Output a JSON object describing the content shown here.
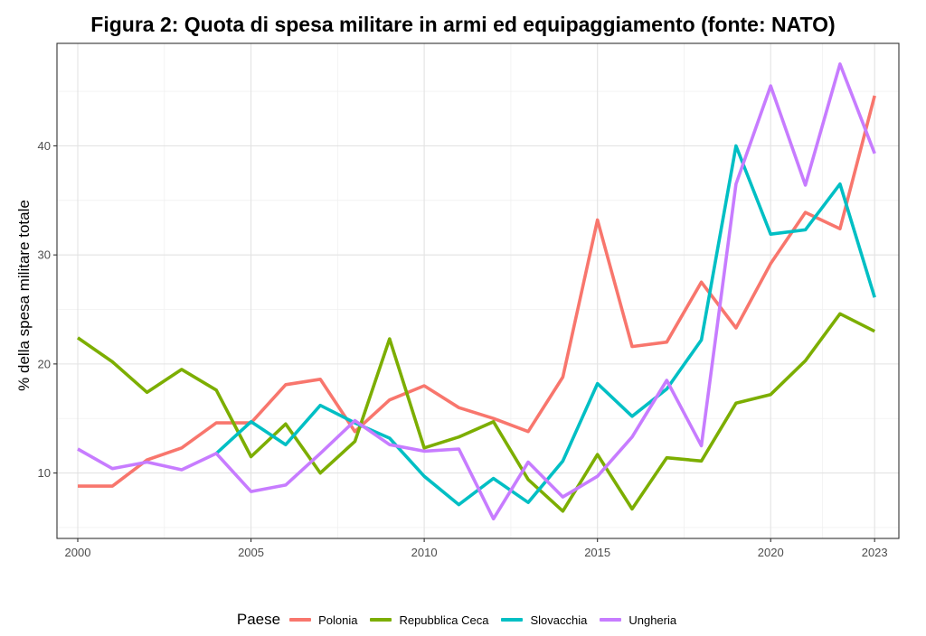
{
  "chart_data": {
    "type": "line",
    "title": "Figura 2: Quota di spesa militare in armi ed equipaggiamento (fonte: NATO)",
    "xlabel": "",
    "ylabel": "% della spesa militare totale",
    "x": [
      2000,
      2001,
      2002,
      2003,
      2004,
      2005,
      2006,
      2007,
      2008,
      2009,
      2010,
      2011,
      2012,
      2013,
      2014,
      2015,
      2016,
      2017,
      2018,
      2019,
      2020,
      2021,
      2022,
      2023
    ],
    "xticks": [
      2000,
      2005,
      2010,
      2015,
      2020,
      2023
    ],
    "yticks": [
      10,
      20,
      30,
      40
    ],
    "xlim": [
      1999.4,
      2023.7
    ],
    "ylim": [
      4.0,
      49.4
    ],
    "grid": true,
    "legend_position": "bottom",
    "legend_title": "Paese",
    "series": [
      {
        "name": "Polonia",
        "color": "#F8766D",
        "x": [
          2000,
          2001,
          2002,
          2003,
          2004,
          2005,
          2006,
          2007,
          2008,
          2009,
          2010,
          2011,
          2012,
          2013,
          2014,
          2015,
          2016,
          2017,
          2018,
          2019,
          2020,
          2021,
          2022,
          2023
        ],
        "values": [
          8.8,
          8.8,
          11.2,
          12.3,
          14.6,
          14.6,
          18.1,
          18.6,
          13.8,
          16.7,
          18.0,
          16.0,
          15.0,
          13.8,
          18.8,
          33.2,
          21.6,
          22.0,
          27.5,
          23.3,
          29.2,
          33.9,
          32.4,
          44.6
        ]
      },
      {
        "name": "Repubblica Ceca",
        "color": "#7CAE00",
        "x": [
          2000,
          2001,
          2002,
          2003,
          2004,
          2005,
          2006,
          2007,
          2008,
          2009,
          2010,
          2011,
          2012,
          2013,
          2014,
          2015,
          2016,
          2017,
          2018,
          2019,
          2020,
          2021,
          2022,
          2023
        ],
        "values": [
          22.4,
          20.2,
          17.4,
          19.5,
          17.6,
          11.5,
          14.5,
          10.0,
          12.9,
          22.3,
          12.3,
          13.3,
          14.7,
          9.4,
          6.5,
          11.7,
          6.7,
          11.4,
          11.1,
          16.4,
          17.2,
          20.3,
          24.6,
          23.0
        ]
      },
      {
        "name": "Slovacchia",
        "color": "#00BFC4",
        "x": [
          2004,
          2005,
          2006,
          2007,
          2008,
          2009,
          2010,
          2011,
          2012,
          2013,
          2014,
          2015,
          2016,
          2017,
          2018,
          2019,
          2020,
          2021,
          2022,
          2023
        ],
        "values": [
          11.8,
          14.7,
          12.6,
          16.2,
          14.6,
          13.2,
          9.7,
          7.1,
          9.5,
          7.3,
          11.1,
          18.2,
          15.2,
          17.7,
          22.2,
          40.0,
          31.9,
          32.3,
          36.5,
          26.1
        ]
      },
      {
        "name": "Ungheria",
        "color": "#C77CFF",
        "x": [
          2000,
          2001,
          2002,
          2003,
          2004,
          2005,
          2006,
          2007,
          2008,
          2009,
          2010,
          2011,
          2012,
          2013,
          2014,
          2015,
          2016,
          2017,
          2018,
          2019,
          2020,
          2021,
          2022,
          2023
        ],
        "values": [
          12.2,
          10.4,
          11.0,
          10.3,
          11.8,
          8.3,
          8.9,
          11.8,
          14.8,
          12.6,
          12.0,
          12.2,
          5.8,
          11.0,
          7.8,
          9.7,
          13.3,
          18.5,
          12.5,
          36.5,
          45.5,
          36.4,
          47.5,
          39.3
        ]
      }
    ]
  }
}
